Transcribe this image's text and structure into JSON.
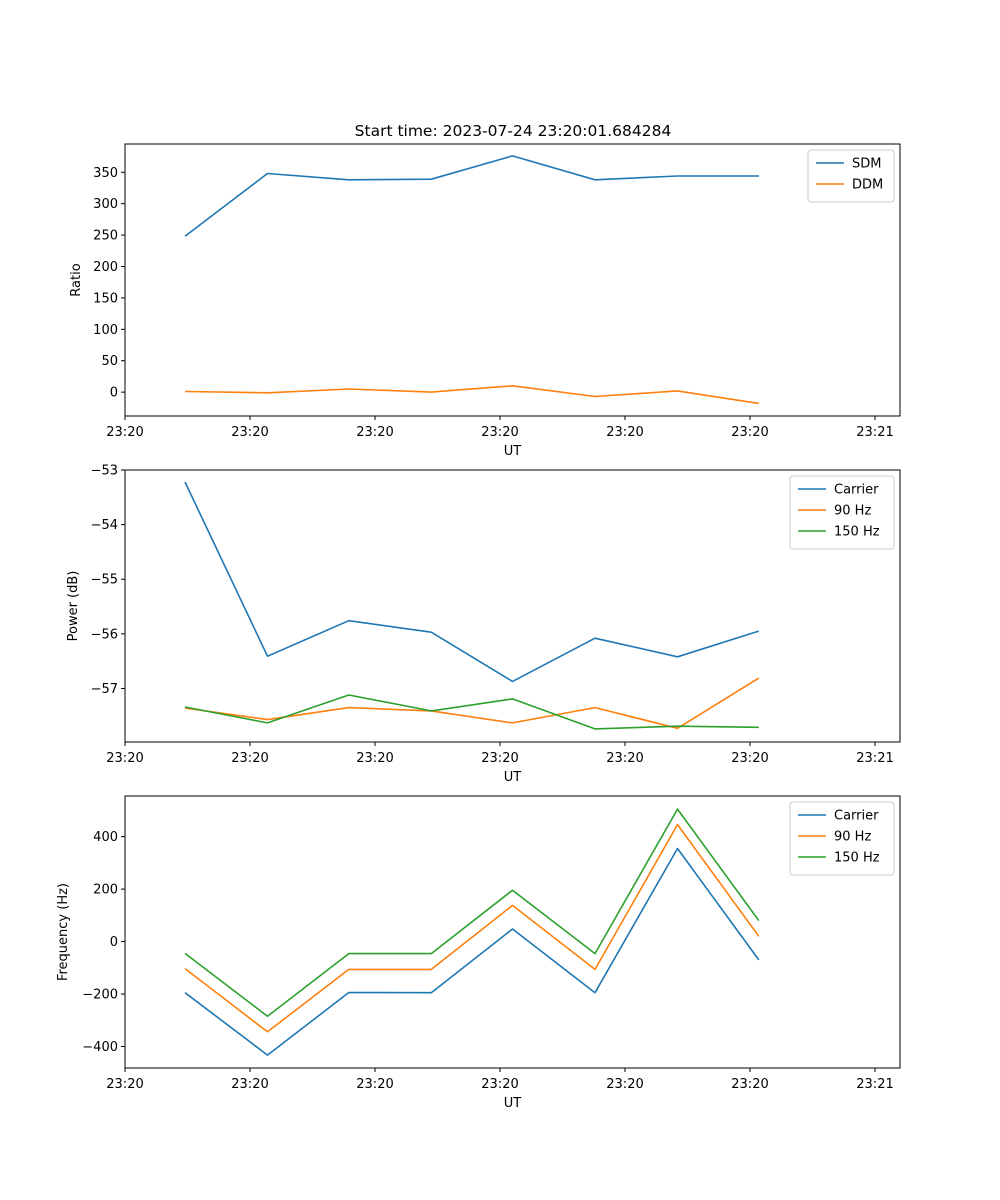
{
  "title": "Start time: 2023-07-24 23:20:01.684284",
  "chart_data": [
    {
      "type": "line",
      "xlabel": "UT",
      "ylabel": "Ratio",
      "xlim": [
        0,
        6.2
      ],
      "ylim": [
        -38,
        395
      ],
      "yticks": [
        0,
        50,
        100,
        150,
        200,
        250,
        300,
        350
      ],
      "xtick_positions": [
        0,
        1,
        2,
        3,
        4,
        5,
        6
      ],
      "xtick_labels": [
        "23:20",
        "23:20",
        "23:20",
        "23:20",
        "23:20",
        "23:20",
        "23:21"
      ],
      "x": [
        0.48,
        1.14,
        1.79,
        2.45,
        3.1,
        3.76,
        4.42,
        5.07
      ],
      "legend_position": "top-right",
      "series": [
        {
          "name": "SDM",
          "color": "#1f77b4",
          "values": [
            248,
            348,
            338,
            339,
            376,
            338,
            344,
            344
          ]
        },
        {
          "name": "DDM",
          "color": "#ff7f0e",
          "values": [
            1,
            -1,
            5,
            0,
            10,
            -7,
            2,
            -18
          ]
        }
      ]
    },
    {
      "type": "line",
      "xlabel": "UT",
      "ylabel": "Power (dB)",
      "xlim": [
        0,
        6.2
      ],
      "ylim": [
        -57.98,
        -53
      ],
      "yticks": [
        -53,
        -54,
        -55,
        -56,
        -57
      ],
      "ytick_labels": [
        "−53",
        "−54",
        "−55",
        "−56",
        "−57"
      ],
      "xtick_positions": [
        0,
        1,
        2,
        3,
        4,
        5,
        6
      ],
      "xtick_labels": [
        "23:20",
        "23:20",
        "23:20",
        "23:20",
        "23:20",
        "23:20",
        "23:21"
      ],
      "x": [
        0.48,
        1.14,
        1.79,
        2.45,
        3.1,
        3.76,
        4.42,
        5.07
      ],
      "legend_position": "top-right",
      "series": [
        {
          "name": "Carrier",
          "color": "#1f77b4",
          "values": [
            -53.22,
            -56.41,
            -55.76,
            -55.97,
            -56.87,
            -56.08,
            -56.42,
            -55.95
          ]
        },
        {
          "name": "90 Hz",
          "color": "#ff7f0e",
          "values": [
            -57.36,
            -57.57,
            -57.35,
            -57.41,
            -57.63,
            -57.35,
            -57.73,
            -56.81
          ]
        },
        {
          "name": "150 Hz",
          "color": "#2ca02c",
          "values": [
            -57.34,
            -57.63,
            -57.12,
            -57.41,
            -57.19,
            -57.74,
            -57.69,
            -57.71
          ]
        }
      ]
    },
    {
      "type": "line",
      "xlabel": "UT",
      "ylabel": "Frequency (Hz)",
      "xlim": [
        0,
        6.2
      ],
      "ylim": [
        -482,
        555
      ],
      "yticks": [
        -400,
        -200,
        0,
        200,
        400
      ],
      "ytick_labels": [
        "−400",
        "−200",
        "0",
        "200",
        "400"
      ],
      "xtick_positions": [
        0,
        1,
        2,
        3,
        4,
        5,
        6
      ],
      "xtick_labels": [
        "23:20",
        "23:20",
        "23:20",
        "23:20",
        "23:20",
        "23:20",
        "23:21"
      ],
      "x": [
        0.48,
        1.14,
        1.79,
        2.45,
        3.1,
        3.76,
        4.42,
        5.07
      ],
      "legend_position": "top-right",
      "series": [
        {
          "name": "Carrier",
          "color": "#1f77b4",
          "values": [
            -195,
            -433,
            -194,
            -195,
            48,
            -195,
            355,
            -70
          ]
        },
        {
          "name": "90 Hz",
          "color": "#ff7f0e",
          "values": [
            -103,
            -344,
            -106,
            -106,
            138,
            -106,
            446,
            20
          ]
        },
        {
          "name": "150 Hz",
          "color": "#2ca02c",
          "values": [
            -45,
            -285,
            -46,
            -46,
            196,
            -46,
            505,
            80
          ]
        }
      ]
    }
  ]
}
